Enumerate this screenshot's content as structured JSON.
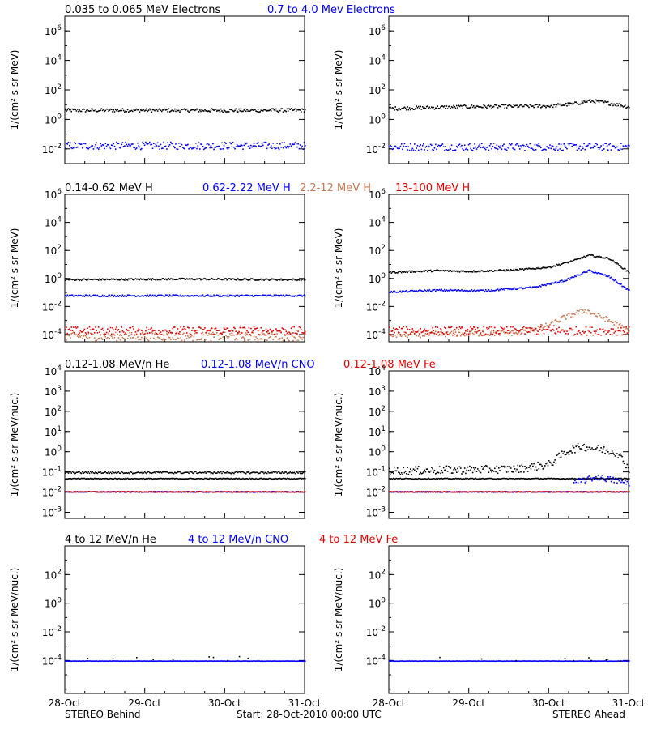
{
  "colors": {
    "black": "#000000",
    "blue": "#0000ff",
    "tan": "#c87850",
    "red": "#e00000"
  },
  "footer": {
    "left": "STEREO Behind",
    "center": "Start: 28-Oct-2010 00:00 UTC",
    "right": "STEREO Ahead"
  },
  "x_ticks": [
    "28-Oct",
    "29-Oct",
    "30-Oct",
    "31-Oct"
  ],
  "chart_data": [
    {
      "type": "scatter",
      "row": 1,
      "spacecraft": "STEREO Behind",
      "titles": [
        {
          "text": "0.035 to 0.065 MeV Electrons",
          "color": "black"
        },
        {
          "text": "0.7 to 4.0 Mev Electrons",
          "color": "blue"
        }
      ],
      "ylabel": "1/(cm² s sr MeV)",
      "yscale": "log",
      "ylim": [
        0.001,
        10000000
      ],
      "y_ticks": [
        {
          "base": "10",
          "exp": "6"
        },
        {
          "base": "10",
          "exp": "4"
        },
        {
          "base": "10",
          "exp": "2"
        },
        {
          "base": "10",
          "exp": "0"
        },
        {
          "base": "10",
          "exp": "-2"
        }
      ],
      "xlim_days": [
        0,
        3
      ],
      "series": [
        {
          "color": "black",
          "profile": [
            [
              0,
              4.5
            ],
            [
              1,
              4.6
            ],
            [
              2,
              4.5
            ],
            [
              3,
              4.6
            ]
          ],
          "scatter": 0.12
        },
        {
          "color": "blue",
          "profile": [
            [
              0,
              0.018
            ],
            [
              3,
              0.018
            ]
          ],
          "scatter": 0.25
        }
      ]
    },
    {
      "type": "scatter",
      "row": 1,
      "spacecraft": "STEREO Ahead",
      "titles": [],
      "ylabel": "1/(cm² s sr MeV)",
      "yscale": "log",
      "ylim": [
        0.001,
        10000000
      ],
      "y_ticks": [
        {
          "base": "10",
          "exp": "6"
        },
        {
          "base": "10",
          "exp": "4"
        },
        {
          "base": "10",
          "exp": "2"
        },
        {
          "base": "10",
          "exp": "0"
        },
        {
          "base": "10",
          "exp": "-2"
        }
      ],
      "xlim_days": [
        0,
        3
      ],
      "series": [
        {
          "color": "black",
          "profile": [
            [
              0,
              6
            ],
            [
              0.5,
              7
            ],
            [
              1.0,
              8
            ],
            [
              1.5,
              8.5
            ],
            [
              2.0,
              9
            ],
            [
              2.3,
              12
            ],
            [
              2.5,
              20
            ],
            [
              2.7,
              15
            ],
            [
              3,
              8
            ]
          ],
          "scatter": 0.12
        },
        {
          "color": "blue",
          "profile": [
            [
              0,
              0.015
            ],
            [
              3,
              0.015
            ]
          ],
          "scatter": 0.25
        }
      ]
    },
    {
      "type": "scatter",
      "row": 2,
      "spacecraft": "STEREO Behind",
      "titles": [
        {
          "text": "0.14-0.62 MeV H",
          "color": "black"
        },
        {
          "text": "0.62-2.22 MeV H",
          "color": "blue"
        },
        {
          "text": "2.2-12 MeV H",
          "color": "tan"
        },
        {
          "text": "13-100 MeV H",
          "color": "red"
        }
      ],
      "ylabel": "1/(cm² s sr MeV)",
      "yscale": "log",
      "ylim": [
        3e-05,
        1000000
      ],
      "y_ticks": [
        {
          "base": "10",
          "exp": "6"
        },
        {
          "base": "10",
          "exp": "4"
        },
        {
          "base": "10",
          "exp": "2"
        },
        {
          "base": "10",
          "exp": "0"
        },
        {
          "base": "10",
          "exp": "-2"
        },
        {
          "base": "10",
          "exp": "-4"
        }
      ],
      "xlim_days": [
        0,
        3
      ],
      "series": [
        {
          "color": "black",
          "profile": [
            [
              0,
              0.9
            ],
            [
              1.5,
              1.0
            ],
            [
              3,
              0.9
            ]
          ],
          "scatter": 0.06
        },
        {
          "color": "blue",
          "profile": [
            [
              0,
              0.065
            ],
            [
              3,
              0.065
            ]
          ],
          "scatter": 0.06
        },
        {
          "color": "tan",
          "profile": [
            [
              0,
              8e-05
            ],
            [
              3,
              8e-05
            ]
          ],
          "scatter": 0.3
        },
        {
          "color": "red",
          "profile": [
            [
              0,
              0.0002
            ],
            [
              3,
              0.0002
            ]
          ],
          "scatter": 0.3
        }
      ]
    },
    {
      "type": "scatter",
      "row": 2,
      "spacecraft": "STEREO Ahead",
      "titles": [],
      "ylabel": "1/(cm² s sr MeV)",
      "yscale": "log",
      "ylim": [
        3e-05,
        1000000
      ],
      "y_ticks": [
        {
          "base": "10",
          "exp": "6"
        },
        {
          "base": "10",
          "exp": "4"
        },
        {
          "base": "10",
          "exp": "2"
        },
        {
          "base": "10",
          "exp": "0"
        },
        {
          "base": "10",
          "exp": "-2"
        },
        {
          "base": "10",
          "exp": "-4"
        }
      ],
      "xlim_days": [
        0,
        3
      ],
      "series": [
        {
          "color": "black",
          "profile": [
            [
              0,
              3
            ],
            [
              0.6,
              4
            ],
            [
              1.0,
              3.5
            ],
            [
              1.6,
              4.5
            ],
            [
              2.0,
              7
            ],
            [
              2.3,
              20
            ],
            [
              2.5,
              50
            ],
            [
              2.75,
              30
            ],
            [
              3,
              3
            ]
          ],
          "scatter": 0.06
        },
        {
          "color": "blue",
          "profile": [
            [
              0,
              0.12
            ],
            [
              0.6,
              0.16
            ],
            [
              1.2,
              0.15
            ],
            [
              1.8,
              0.25
            ],
            [
              2.2,
              0.8
            ],
            [
              2.5,
              4
            ],
            [
              2.75,
              1.5
            ],
            [
              3,
              0.15
            ]
          ],
          "scatter": 0.06
        },
        {
          "color": "tan",
          "profile": [
            [
              0,
              0.0001
            ],
            [
              1.6,
              0.00015
            ],
            [
              2.0,
              0.0005
            ],
            [
              2.2,
              0.002
            ],
            [
              2.45,
              0.006
            ],
            [
              2.7,
              0.0015
            ],
            [
              3,
              0.0002
            ]
          ],
          "scatter": 0.2
        },
        {
          "color": "red",
          "profile": [
            [
              0,
              0.0002
            ],
            [
              3,
              0.0002
            ]
          ],
          "scatter": 0.3
        }
      ]
    },
    {
      "type": "scatter",
      "row": 3,
      "spacecraft": "STEREO Behind",
      "titles": [
        {
          "text": "0.12-1.08 MeV/n He",
          "color": "black"
        },
        {
          "text": "0.12-1.08 MeV/n CNO",
          "color": "blue"
        },
        {
          "text": "0.12-1.08 MeV Fe",
          "color": "red"
        }
      ],
      "ylabel": "1/(cm² s sr MeV/nuc.)",
      "yscale": "log",
      "ylim": [
        0.0005,
        10000
      ],
      "y_ticks": [
        {
          "base": "10",
          "exp": "4"
        },
        {
          "base": "10",
          "exp": "3"
        },
        {
          "base": "10",
          "exp": "2"
        },
        {
          "base": "10",
          "exp": "1"
        },
        {
          "base": "10",
          "exp": "0"
        },
        {
          "base": "10",
          "exp": "-1"
        },
        {
          "base": "10",
          "exp": "-2"
        },
        {
          "base": "10",
          "exp": "-3"
        }
      ],
      "xlim_days": [
        0,
        3
      ],
      "series": [
        {
          "color": "black",
          "profile": [
            [
              0,
              0.05
            ],
            [
              3,
              0.05
            ]
          ],
          "scatter": 0.02
        },
        {
          "color": "black",
          "profile": [
            [
              0,
              0.1
            ],
            [
              3,
              0.1
            ]
          ],
          "scatter": 0.05
        },
        {
          "color": "blue",
          "profile": [
            [
              0,
              0.011
            ],
            [
              3,
              0.011
            ]
          ],
          "scatter": 0.02
        },
        {
          "color": "red",
          "profile": [
            [
              0,
              0.011
            ],
            [
              3,
              0.011
            ]
          ],
          "scatter": 0.02
        }
      ]
    },
    {
      "type": "scatter",
      "row": 3,
      "spacecraft": "STEREO Ahead",
      "titles": [],
      "ylabel": "1/(cm² s sr MeV/nuc.)",
      "yscale": "log",
      "ylim": [
        0.0005,
        10000
      ],
      "y_ticks": [
        {
          "base": "10",
          "exp": "4"
        },
        {
          "base": "10",
          "exp": "3"
        },
        {
          "base": "10",
          "exp": "2"
        },
        {
          "base": "10",
          "exp": "1"
        },
        {
          "base": "10",
          "exp": "0"
        },
        {
          "base": "10",
          "exp": "-1"
        },
        {
          "base": "10",
          "exp": "-2"
        },
        {
          "base": "10",
          "exp": "-3"
        }
      ],
      "xlim_days": [
        0,
        3
      ],
      "series": [
        {
          "color": "black",
          "profile": [
            [
              0,
              0.05
            ],
            [
              3,
              0.05
            ]
          ],
          "scatter": 0.02
        },
        {
          "color": "black",
          "profile": [
            [
              0,
              0.12
            ],
            [
              1.6,
              0.15
            ],
            [
              2.0,
              0.25
            ],
            [
              2.2,
              1.0
            ],
            [
              2.4,
              2.0
            ],
            [
              2.6,
              1.5
            ],
            [
              2.85,
              1.0
            ],
            [
              3,
              0.15
            ]
          ],
          "scatter": 0.2
        },
        {
          "color": "blue",
          "profile": [
            [
              0,
              0.011
            ],
            [
              3,
              0.011
            ]
          ],
          "scatter": 0.02
        },
        {
          "color": "blue",
          "profile": [
            [
              2.3,
              0.03
            ],
            [
              2.6,
              0.06
            ],
            [
              3,
              0.03
            ]
          ],
          "scatter": 0.15
        },
        {
          "color": "red",
          "profile": [
            [
              0,
              0.011
            ],
            [
              3,
              0.011
            ]
          ],
          "scatter": 0.02
        }
      ]
    },
    {
      "type": "scatter",
      "row": 4,
      "spacecraft": "STEREO Behind",
      "titles": [
        {
          "text": "4 to 12 MeV/n He",
          "color": "black"
        },
        {
          "text": "4 to 12 MeV/n CNO",
          "color": "blue"
        },
        {
          "text": "4 to 12 MeV Fe",
          "color": "red"
        }
      ],
      "ylabel": "1/(cm² s sr MeV/nuc.)",
      "yscale": "log",
      "ylim": [
        5e-07,
        10000
      ],
      "y_ticks": [
        {
          "base": "10",
          "exp": "2"
        },
        {
          "base": "10",
          "exp": "0"
        },
        {
          "base": "10",
          "exp": "-2"
        },
        {
          "base": "10",
          "exp": "-4"
        }
      ],
      "xlim_days": [
        0,
        3
      ],
      "series": [
        {
          "color": "blue",
          "profile": [
            [
              0,
              0.0001
            ],
            [
              3,
              0.0001
            ]
          ],
          "scatter": 0.01
        },
        {
          "color": "black",
          "profile": [
            [
              0,
              0.00015
            ],
            [
              3,
              0.00015
            ]
          ],
          "scatter": 0.2,
          "sparse": true
        }
      ]
    },
    {
      "type": "scatter",
      "row": 4,
      "spacecraft": "STEREO Ahead",
      "titles": [],
      "ylabel": "1/(cm² s sr MeV/nuc.)",
      "yscale": "log",
      "ylim": [
        5e-07,
        10000
      ],
      "y_ticks": [
        {
          "base": "10",
          "exp": "2"
        },
        {
          "base": "10",
          "exp": "0"
        },
        {
          "base": "10",
          "exp": "-2"
        },
        {
          "base": "10",
          "exp": "-4"
        }
      ],
      "xlim_days": [
        0,
        3
      ],
      "series": [
        {
          "color": "blue",
          "profile": [
            [
              0,
              0.0001
            ],
            [
              3,
              0.0001
            ]
          ],
          "scatter": 0.01
        },
        {
          "color": "black",
          "profile": [
            [
              0,
              0.00015
            ],
            [
              3,
              0.00015
            ]
          ],
          "scatter": 0.2,
          "sparse": true
        }
      ]
    }
  ]
}
